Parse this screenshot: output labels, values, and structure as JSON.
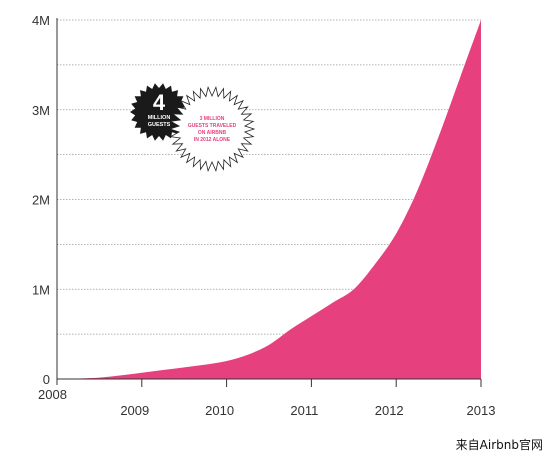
{
  "chart_data": {
    "type": "area",
    "x": [
      2008.0,
      2008.25,
      2008.5,
      2008.75,
      2009.0,
      2009.25,
      2009.5,
      2009.75,
      2010.0,
      2010.25,
      2010.5,
      2010.75,
      2011.0,
      2011.25,
      2011.5,
      2011.75,
      2012.0,
      2012.25,
      2012.5,
      2012.75,
      2013.0
    ],
    "values": [
      0,
      0.005,
      0.015,
      0.04,
      0.07,
      0.1,
      0.13,
      0.16,
      0.2,
      0.27,
      0.38,
      0.55,
      0.7,
      0.85,
      1.0,
      1.28,
      1.62,
      2.1,
      2.7,
      3.35,
      4.0
    ],
    "y_tick_labels": [
      "0",
      "1M",
      "2M",
      "3M",
      "4M"
    ],
    "x_tick_labels": [
      "2008",
      "2009",
      "2010",
      "2011",
      "2012",
      "2013"
    ],
    "ylim": [
      0,
      4
    ],
    "xlim": [
      2008,
      2013
    ],
    "grid": "horizontal dotted",
    "color": "#e6407f",
    "badge_dark": {
      "number": "4",
      "label_line1": "MILLION",
      "label_line2": "GUESTS"
    },
    "badge_light": {
      "line1": "3 MILLION",
      "line2": "GUESTS TRAVELED",
      "line3": "ON AIRBNB",
      "line4": "IN 2012 ALONE"
    }
  },
  "source_caption": "来自Airbnb官网"
}
